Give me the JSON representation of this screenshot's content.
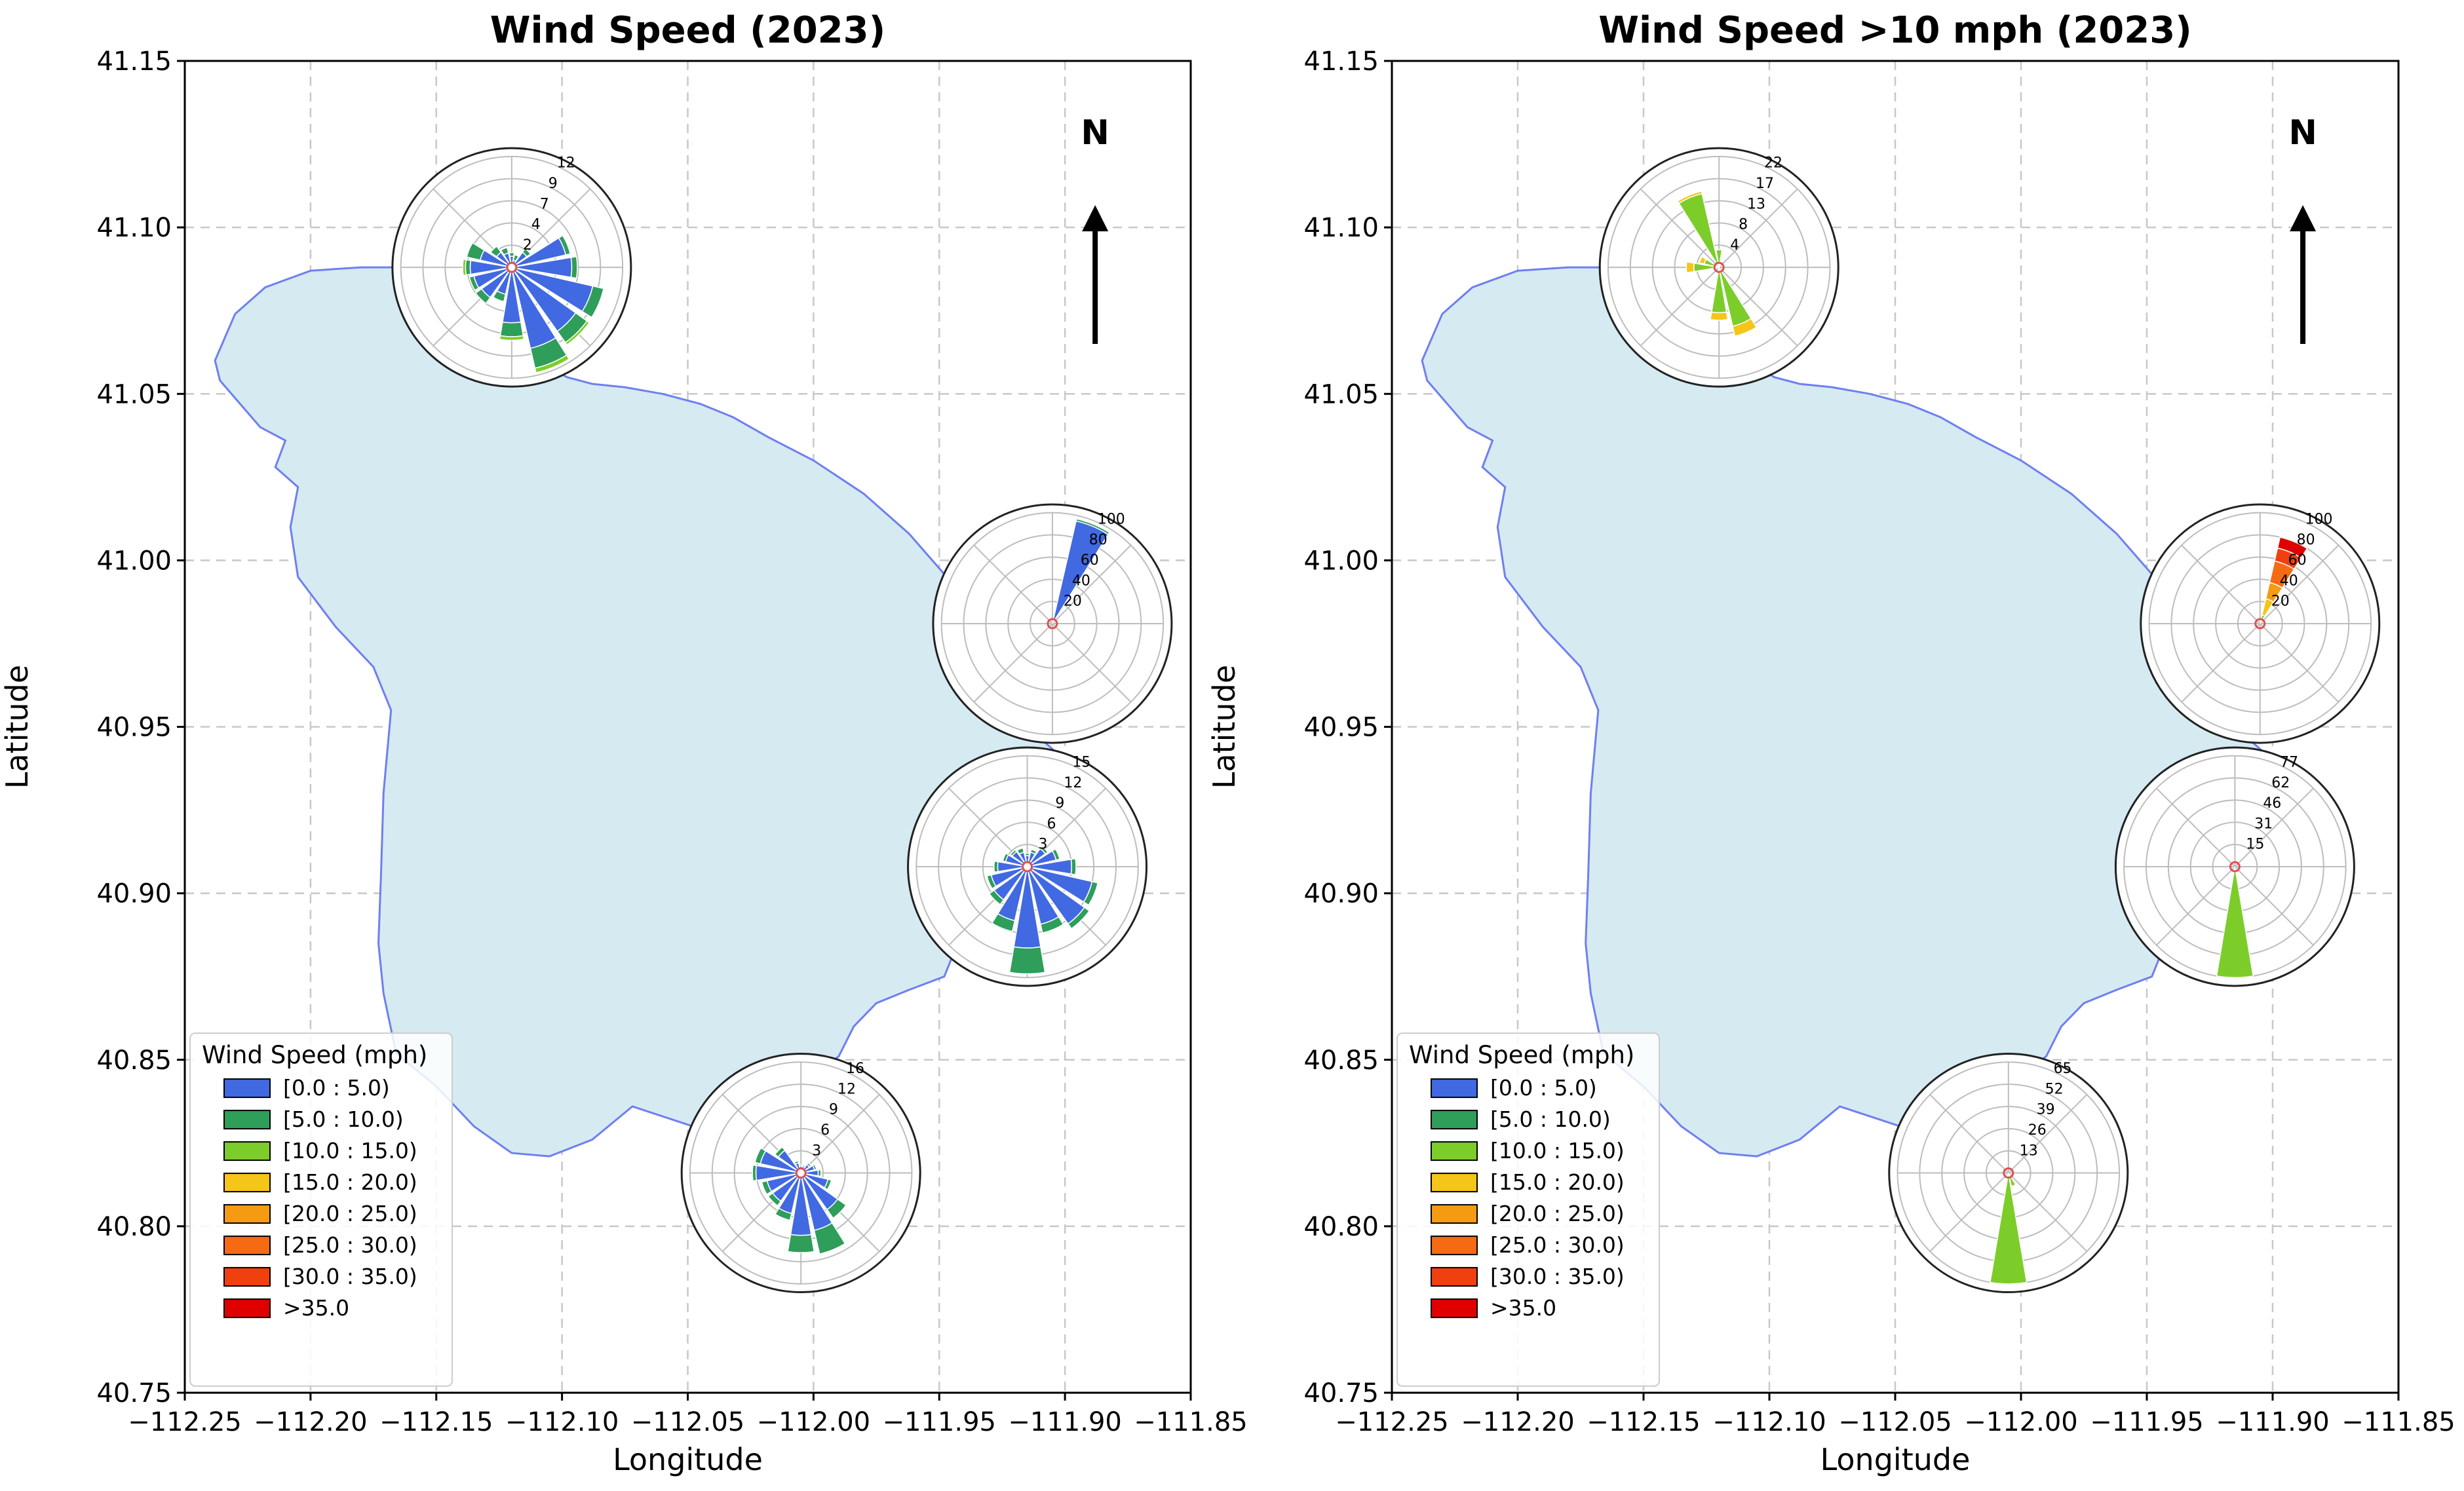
{
  "chart_data": [
    {
      "type": "map-windrose",
      "title": "Wind Speed (2023)",
      "xlabel": "Longitude",
      "ylabel": "Latitude",
      "xlim": [
        -112.25,
        -111.85
      ],
      "ylim": [
        40.75,
        41.15
      ],
      "xticks": [
        "−112.25",
        "−112.20",
        "−112.15",
        "−112.10",
        "−112.05",
        "−112.00",
        "−111.95",
        "−111.90",
        "−111.85"
      ],
      "yticks": [
        "40.75",
        "40.80",
        "40.85",
        "40.90",
        "40.95",
        "41.00",
        "41.05",
        "41.10",
        "41.15"
      ],
      "grid": true,
      "north_label": "N",
      "legend": {
        "title": "Wind Speed (mph)",
        "placement": "lower-left",
        "entries": [
          {
            "label": "[0.0 : 5.0)",
            "color": "#4169e1"
          },
          {
            "label": "[5.0 : 10.0)",
            "color": "#2e9e5a"
          },
          {
            "label": "[10.0 : 15.0)",
            "color": "#7ccd2a"
          },
          {
            "label": "[15.0 : 20.0)",
            "color": "#f5c518"
          },
          {
            "label": "[20.0 : 25.0)",
            "color": "#f59b12"
          },
          {
            "label": "[25.0 : 30.0)",
            "color": "#f56a12"
          },
          {
            "label": "[30.0 : 35.0)",
            "color": "#f04010"
          },
          {
            "label": ">35.0",
            "color": "#e00000"
          }
        ]
      },
      "roses": [
        {
          "name": "north",
          "lon": -112.12,
          "lat": 41.088,
          "rmax": 12,
          "ticks": [
            "2",
            "4",
            "7",
            "9",
            "12"
          ],
          "segments": [
            [
              0,
              [
                1.2,
                0.4
              ]
            ],
            [
              22.5,
              [
                0.8,
                0.6
              ]
            ],
            [
              45,
              [
                2,
                0.5
              ]
            ],
            [
              67.5,
              [
                6,
                0.5
              ]
            ],
            [
              90,
              [
                6.5,
                0.6
              ]
            ],
            [
              112.5,
              [
                9,
                1.2
              ]
            ],
            [
              135,
              [
                8.5,
                1.5,
                0.3
              ]
            ],
            [
              157.5,
              [
                9,
                2.2,
                0.5
              ]
            ],
            [
              180,
              [
                6,
                1.5,
                0.4
              ]
            ],
            [
              202.5,
              [
                3,
                0.8
              ]
            ],
            [
              225,
              [
                4,
                0.8
              ]
            ],
            [
              247.5,
              [
                4.2,
                0.5
              ]
            ],
            [
              270,
              [
                4.5,
                0.5,
                0.3
              ]
            ],
            [
              292.5,
              [
                3.5,
                1.5
              ]
            ],
            [
              315,
              [
                2,
                0.8
              ]
            ],
            [
              337.5,
              [
                1.6,
                0.6
              ]
            ]
          ]
        },
        {
          "name": "east",
          "lon": -111.905,
          "lat": 40.981,
          "rmax": 100,
          "ticks": [
            "20",
            "40",
            "60",
            "80",
            "100"
          ],
          "segments": [
            [
              22.5,
              [
                95,
                2
              ]
            ]
          ]
        },
        {
          "name": "southeast",
          "lon": -111.915,
          "lat": 40.908,
          "rmax": 15,
          "ticks": [
            "3",
            "6",
            "9",
            "12",
            "15"
          ],
          "segments": [
            [
              0,
              [
                1.5,
                0.3
              ]
            ],
            [
              22.5,
              [
                2,
                0.4
              ]
            ],
            [
              45,
              [
                3,
                0.4
              ]
            ],
            [
              67.5,
              [
                4,
                0.5
              ]
            ],
            [
              90,
              [
                6,
                0.6
              ]
            ],
            [
              112.5,
              [
                9,
                0.8
              ]
            ],
            [
              135,
              [
                9.5,
                0.8
              ]
            ],
            [
              157.5,
              [
                8,
                1.2
              ]
            ],
            [
              180,
              [
                11,
                3.5
              ]
            ],
            [
              202.5,
              [
                7.5,
                1.5
              ]
            ],
            [
              225,
              [
                5.5,
                0.8
              ]
            ],
            [
              247.5,
              [
                5,
                0.6
              ]
            ],
            [
              270,
              [
                4,
                0.5
              ]
            ],
            [
              292.5,
              [
                3,
                0.4
              ]
            ],
            [
              315,
              [
                2.5,
                0.3
              ]
            ],
            [
              337.5,
              [
                2,
                0.6
              ]
            ]
          ]
        },
        {
          "name": "south",
          "lon": -112.005,
          "lat": 40.816,
          "rmax": 16,
          "ticks": [
            "3",
            "6",
            "9",
            "12",
            "16"
          ],
          "segments": [
            [
              0,
              [
                1,
                0.2
              ]
            ],
            [
              22.5,
              [
                1,
                0.2
              ]
            ],
            [
              45,
              [
                1.5,
                0.3
              ]
            ],
            [
              67.5,
              [
                2,
                0.3
              ]
            ],
            [
              90,
              [
                2.5,
                0.4
              ]
            ],
            [
              112.5,
              [
                4,
                0.5
              ]
            ],
            [
              135,
              [
                6.5,
                1.5
              ]
            ],
            [
              157.5,
              [
                8.5,
                3.5
              ]
            ],
            [
              180,
              [
                9,
                2.5
              ]
            ],
            [
              202.5,
              [
                6,
                1
              ]
            ],
            [
              225,
              [
                5,
                0.8
              ]
            ],
            [
              247.5,
              [
                5,
                0.8
              ]
            ],
            [
              270,
              [
                6.5,
                0.5
              ]
            ],
            [
              292.5,
              [
                6,
                0.8
              ]
            ],
            [
              315,
              [
                4,
                0.6
              ]
            ],
            [
              337.5,
              [
                1.5,
                0.3
              ]
            ]
          ]
        }
      ]
    },
    {
      "type": "map-windrose",
      "title": "Wind Speed >10 mph (2023)",
      "xlabel": "Longitude",
      "ylabel": "Latitude",
      "xlim": [
        -112.25,
        -111.85
      ],
      "ylim": [
        40.75,
        41.15
      ],
      "xticks": [
        "−112.25",
        "−112.20",
        "−112.15",
        "−112.10",
        "−112.05",
        "−112.00",
        "−111.95",
        "−111.90",
        "−111.85"
      ],
      "yticks": [
        "40.75",
        "40.80",
        "40.85",
        "40.90",
        "40.95",
        "41.00",
        "41.05",
        "41.10",
        "41.15"
      ],
      "grid": true,
      "north_label": "N",
      "legend": {
        "title": "Wind Speed (mph)",
        "placement": "lower-left",
        "entries": [
          {
            "label": "[0.0 : 5.0)",
            "color": "#4169e1"
          },
          {
            "label": "[5.0 : 10.0)",
            "color": "#2e9e5a"
          },
          {
            "label": "[10.0 : 15.0)",
            "color": "#7ccd2a"
          },
          {
            "label": "[15.0 : 20.0)",
            "color": "#f5c518"
          },
          {
            "label": "[20.0 : 25.0)",
            "color": "#f59b12"
          },
          {
            "label": "[25.0 : 30.0)",
            "color": "#f56a12"
          },
          {
            "label": "[30.0 : 35.0)",
            "color": "#f04010"
          },
          {
            "label": ">35.0",
            "color": "#e00000"
          }
        ]
      },
      "roses": [
        {
          "name": "north",
          "lon": -112.12,
          "lat": 41.088,
          "rmax": 22,
          "ticks": [
            "4",
            "8",
            "13",
            "17",
            "22"
          ],
          "segments": [
            [
              0,
              [
                0,
                0,
                3.5
              ]
            ],
            [
              22.5,
              [
                0,
                0,
                1
              ]
            ],
            [
              157.5,
              [
                0,
                0,
                12,
                2
              ]
            ],
            [
              180,
              [
                0,
                0,
                9,
                1.5
              ]
            ],
            [
              270,
              [
                0,
                0,
                5,
                1.5
              ]
            ],
            [
              292.5,
              [
                0,
                0,
                3,
                1
              ]
            ],
            [
              337.5,
              [
                0,
                0,
                15,
                0.5
              ]
            ]
          ]
        },
        {
          "name": "east",
          "lon": -111.905,
          "lat": 40.981,
          "rmax": 100,
          "ticks": [
            "20",
            "40",
            "60",
            "80",
            "100"
          ],
          "segments": [
            [
              22.5,
              [
                0,
                0,
                8,
                15,
                15,
                20,
                12,
                10
              ]
            ]
          ]
        },
        {
          "name": "southeast",
          "lon": -111.915,
          "lat": 40.908,
          "rmax": 77,
          "ticks": [
            "15",
            "31",
            "46",
            "62",
            "77"
          ],
          "segments": [
            [
              180,
              [
                0,
                0,
                77
              ]
            ],
            [
              202.5,
              [
                0,
                0,
                1
              ]
            ]
          ]
        },
        {
          "name": "south",
          "lon": -112.005,
          "lat": 40.816,
          "rmax": 65,
          "ticks": [
            "13",
            "26",
            "39",
            "52",
            "65"
          ],
          "segments": [
            [
              180,
              [
                0,
                0,
                65
              ]
            ],
            [
              157.5,
              [
                0,
                0,
                8
              ]
            ],
            [
              202.5,
              [
                0,
                0,
                2
              ]
            ]
          ]
        }
      ]
    }
  ]
}
